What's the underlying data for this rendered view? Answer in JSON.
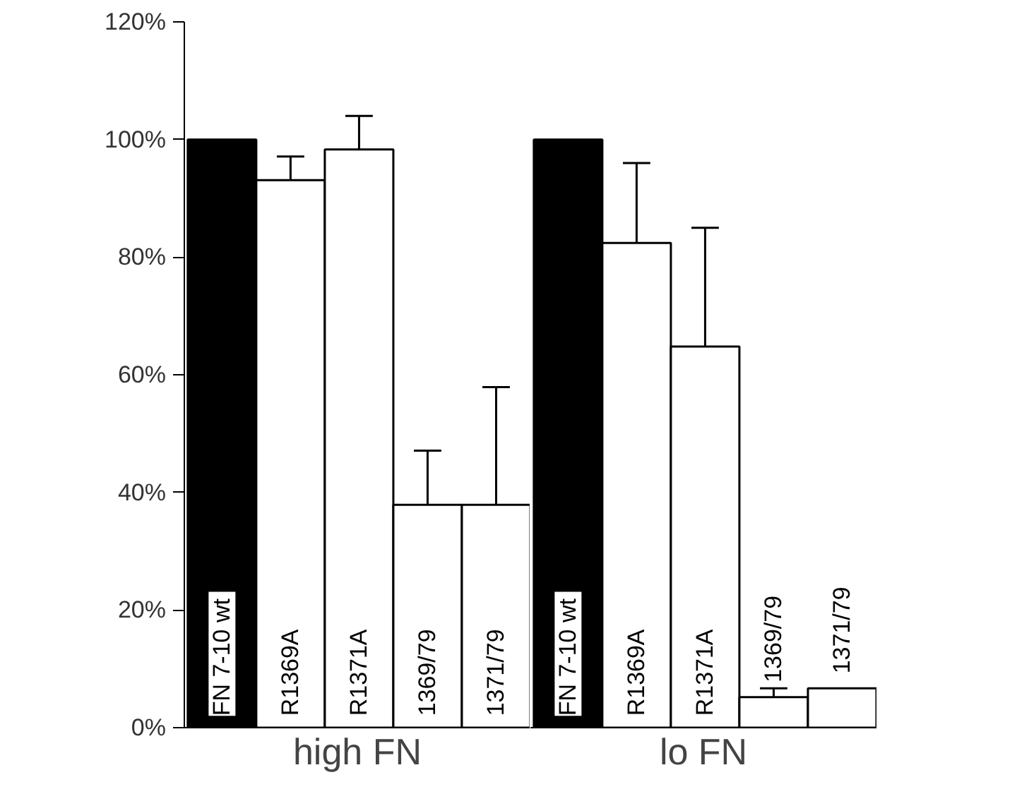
{
  "chart_data": [
    {
      "type": "bar",
      "xlabel": "high FN",
      "categories": [
        "FN 7-10  wt",
        "R1369A",
        "R1371A",
        "1369/79",
        "1371/79"
      ],
      "values": [
        100,
        93.1,
        98.3,
        37.9,
        37.9
      ],
      "colors": [
        "#000000",
        "#ffffff",
        "#ffffff",
        "#ffffff",
        "#ffffff"
      ],
      "errors": [
        null,
        [
          93.1,
          97.1
        ],
        [
          98.3,
          104
        ],
        [
          37.9,
          47.1
        ],
        [
          37.9,
          57.9
        ]
      ],
      "ylim": [
        0,
        120
      ],
      "yticks": [
        {
          "value": 0,
          "label": "0%"
        },
        {
          "value": 20,
          "label": "20%"
        },
        {
          "value": 40,
          "label": "40%"
        },
        {
          "value": 60,
          "label": "60%"
        },
        {
          "value": 80,
          "label": "80%"
        },
        {
          "value": 100,
          "label": "100%"
        },
        {
          "value": 120,
          "label": "120%"
        }
      ],
      "grid": false
    },
    {
      "type": "bar",
      "xlabel": "lo FN",
      "categories": [
        "FN 7-10  wt",
        "R1369A",
        "R1371A",
        "1369/79",
        "1371/79"
      ],
      "values": [
        100,
        82.4,
        64.8,
        5.2,
        6.7
      ],
      "colors": [
        "#000000",
        "#ffffff",
        "#ffffff",
        "#ffffff",
        "#ffffff"
      ],
      "errors": [
        null,
        [
          82.4,
          96
        ],
        [
          64.8,
          85
        ],
        [
          5.2,
          6.7
        ],
        null
      ],
      "ylim": [
        0,
        120
      ],
      "tick_labels": false,
      "grid": false
    }
  ]
}
